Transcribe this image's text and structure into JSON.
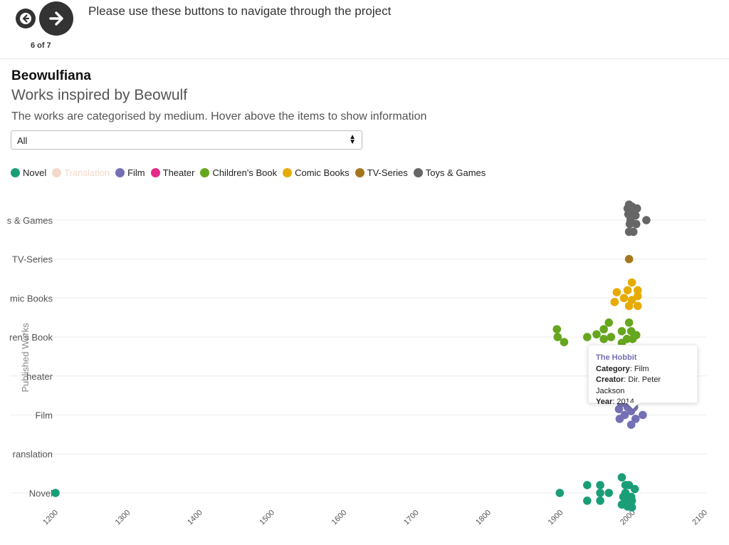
{
  "nav": {
    "instruction": "Please use these buttons to navigate through the project",
    "counter": "6 of 7",
    "prev_icon": "arrow-left-icon",
    "next_icon": "arrow-right-icon"
  },
  "header": {
    "title": "Beowulfiana",
    "subtitle": "Works inspired by Beowulf",
    "description": "The works are categorised by medium. Hover above the items to show information"
  },
  "filter": {
    "selected": "All",
    "icon": "updown-arrows-icon"
  },
  "legend": [
    {
      "label": "Novel",
      "color": "#1b9e77",
      "active": true
    },
    {
      "label": "Translation",
      "color": "#f2d9c8",
      "active": false
    },
    {
      "label": "Film",
      "color": "#7570b3",
      "active": true
    },
    {
      "label": "Theater",
      "color": "#e7298a",
      "active": true
    },
    {
      "label": "Children's Book",
      "color": "#66a61e",
      "active": true
    },
    {
      "label": "Comic Books",
      "color": "#e6ab02",
      "active": true
    },
    {
      "label": "TV-Series",
      "color": "#a6761d",
      "active": true
    },
    {
      "label": "Toys & Games",
      "color": "#666666",
      "active": true
    }
  ],
  "chart_data": {
    "type": "scatter",
    "ylabel": "Published Works",
    "xlabel": "",
    "xlim": [
      1200,
      2100
    ],
    "x_ticks": [
      "1200",
      "1300",
      "1400",
      "1500",
      "1600",
      "1700",
      "1800",
      "1900",
      "2000",
      "2100"
    ],
    "y_categories_displayed": [
      "s & Games",
      "TV-Series",
      "mic Books",
      "ren's Book",
      "heater",
      "Film",
      "ranslation",
      "Novel"
    ],
    "y_categories": [
      "Toys & Games",
      "TV-Series",
      "Comic Books",
      "Children's Book",
      "Theater",
      "Film",
      "Translation",
      "Novel"
    ],
    "series": [
      {
        "name": "Novel",
        "color": "#1b9e77",
        "points": [
          [
            1200,
            0
          ],
          [
            1899,
            0
          ],
          [
            1937,
            0.2
          ],
          [
            1937,
            -0.2
          ],
          [
            1955,
            0.2
          ],
          [
            1955,
            0
          ],
          [
            1955,
            -0.2
          ],
          [
            1967,
            0
          ],
          [
            1985,
            0.4
          ],
          [
            1990,
            0.2
          ],
          [
            1995,
            0.2
          ],
          [
            1990,
            0
          ],
          [
            2003,
            0.1
          ],
          [
            1987,
            -0.1
          ],
          [
            1998,
            -0.1
          ],
          [
            1991,
            -0.2
          ],
          [
            1999,
            -0.2
          ],
          [
            1985,
            -0.3
          ],
          [
            1993,
            -0.35
          ],
          [
            1999,
            -0.37
          ]
        ]
      },
      {
        "name": "Film",
        "color": "#7570b3",
        "points": [
          [
            1984,
            0.3
          ],
          [
            1993,
            0.2
          ],
          [
            2002,
            0.2
          ],
          [
            1981,
            0.15
          ],
          [
            1989,
            0
          ],
          [
            2014,
            0
          ],
          [
            1982,
            -0.1
          ],
          [
            2004,
            -0.1
          ],
          [
            1998,
            -0.25
          ],
          [
            1998,
            0.1
          ]
        ]
      },
      {
        "name": "Children's Book",
        "color": "#66a61e",
        "points": [
          [
            1895,
            0.2
          ],
          [
            1896,
            0
          ],
          [
            1905,
            -0.13
          ],
          [
            1937,
            0
          ],
          [
            1950,
            0.07
          ],
          [
            1960,
            0.2
          ],
          [
            1967,
            0.37
          ],
          [
            1985,
            0.15
          ],
          [
            1995,
            0.37
          ],
          [
            1998,
            0.15
          ],
          [
            2005,
            0.05
          ],
          [
            1970,
            0
          ],
          [
            1992,
            -0.05
          ],
          [
            1985,
            -0.15
          ],
          [
            2000,
            -0.05
          ],
          [
            1960,
            -0.05
          ]
        ]
      },
      {
        "name": "Comic Books",
        "color": "#e6ab02",
        "points": [
          [
            1999,
            0.4
          ],
          [
            1978,
            0.15
          ],
          [
            1993,
            0.2
          ],
          [
            2007,
            0.2
          ],
          [
            2007,
            0.05
          ],
          [
            1975,
            -0.1
          ],
          [
            1988,
            0
          ],
          [
            1999,
            -0.05
          ],
          [
            1995,
            -0.2
          ],
          [
            2007,
            -0.2
          ]
        ]
      },
      {
        "name": "TV-Series",
        "color": "#a6761d",
        "points": [
          [
            1995,
            0
          ]
        ]
      },
      {
        "name": "Toys & Games",
        "color": "#666666",
        "points": [
          [
            1995,
            0.4
          ],
          [
            1999,
            0.35
          ],
          [
            1993,
            0.3
          ],
          [
            2006,
            0.3
          ],
          [
            1998,
            0.1
          ],
          [
            2019,
            0
          ],
          [
            1994,
            0.15
          ],
          [
            2004,
            0.12
          ],
          [
            1997,
            0
          ],
          [
            2005,
            -0.1
          ],
          [
            1996,
            -0.1
          ],
          [
            1995,
            -0.3
          ],
          [
            2001,
            -0.3
          ],
          [
            1998,
            0.2
          ]
        ]
      }
    ],
    "tooltip": {
      "title": "The Hobbit",
      "category_label": "Category",
      "category": "Film",
      "creator_label": "Creator",
      "creator": "Dir. Peter Jackson",
      "year_label": "Year",
      "year": "2014"
    }
  }
}
